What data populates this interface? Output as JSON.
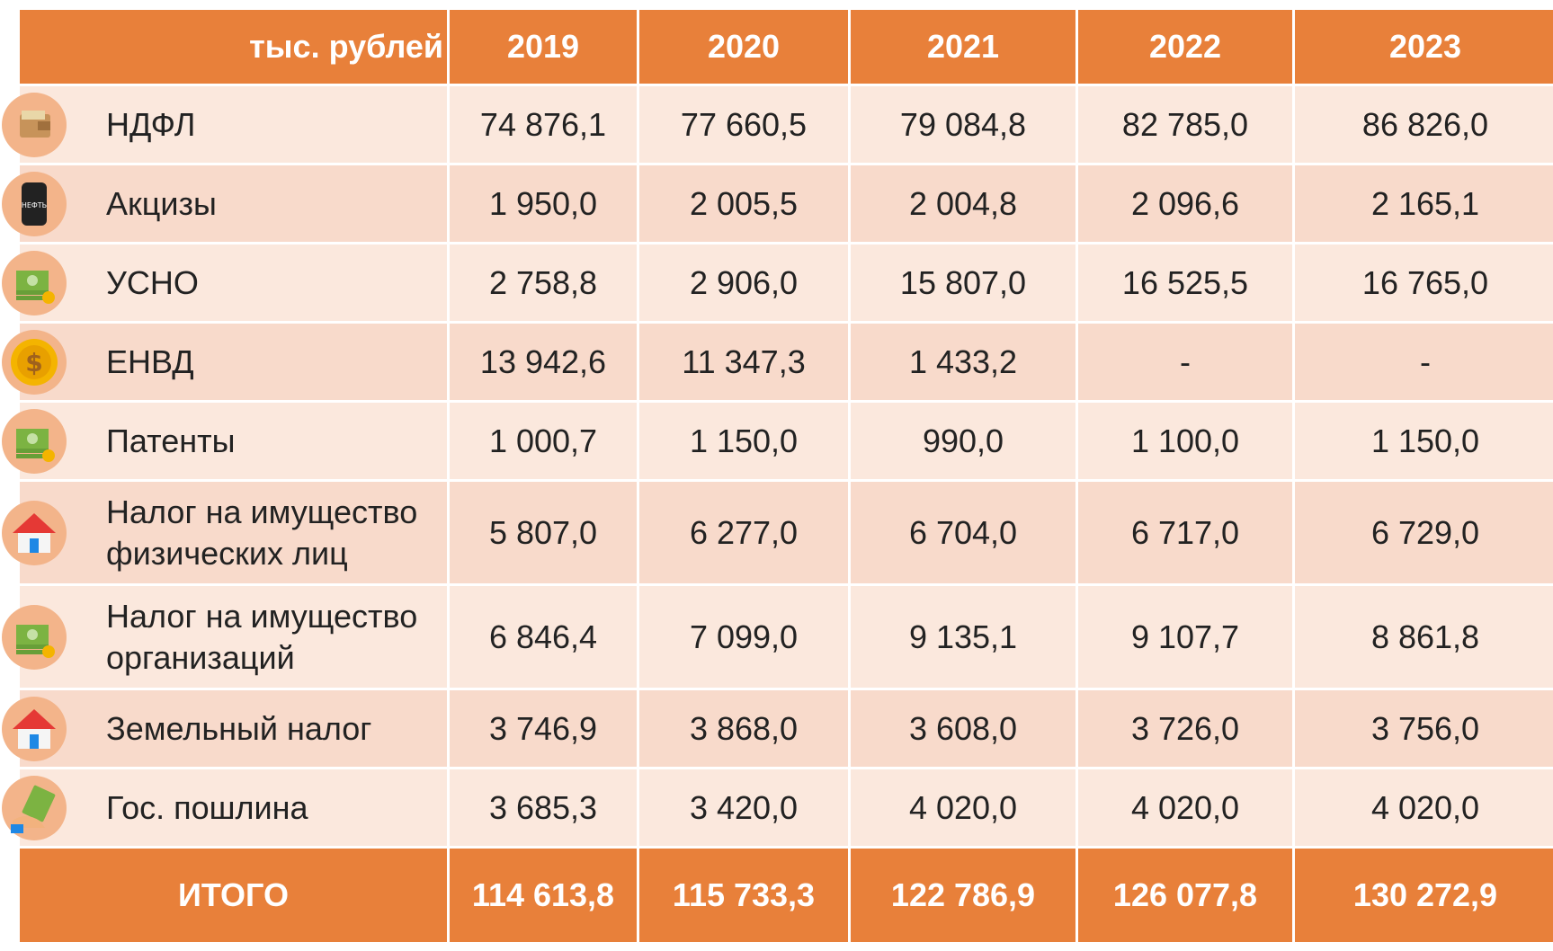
{
  "header": {
    "unit": "тыс. рублей",
    "years": [
      "2019",
      "2020",
      "2021",
      "2022",
      "2023"
    ]
  },
  "rows": [
    {
      "name": "НДФЛ",
      "values": [
        "74 876,1",
        "77 660,5",
        "79 084,8",
        "82 785,0",
        "86 826,0"
      ]
    },
    {
      "name": "Акцизы",
      "values": [
        "1 950,0",
        "2 005,5",
        "2 004,8",
        "2 096,6",
        "2 165,1"
      ]
    },
    {
      "name": "УСНО",
      "values": [
        "2 758,8",
        "2 906,0",
        "15 807,0",
        "16 525,5",
        "16 765,0"
      ]
    },
    {
      "name": "ЕНВД",
      "values": [
        "13 942,6",
        "11 347,3",
        "1 433,2",
        "-",
        "-"
      ]
    },
    {
      "name": "Патенты",
      "values": [
        "1 000,7",
        "1 150,0",
        "990,0",
        "1 100,0",
        "1 150,0"
      ]
    },
    {
      "name": "Налог на имущество физических лиц",
      "values": [
        "5 807,0",
        "6 277,0",
        "6 704,0",
        "6 717,0",
        "6 729,0"
      ]
    },
    {
      "name": "Налог на имущество организаций",
      "values": [
        "6 846,4",
        "7 099,0",
        "9 135,1",
        "9 107,7",
        "8 861,8"
      ]
    },
    {
      "name": "Земельный налог",
      "values": [
        "3 746,9",
        "3 868,0",
        "3 608,0",
        "3 726,0",
        "3 756,0"
      ]
    },
    {
      "name": "Гос. пошлина",
      "values": [
        "3 685,3",
        "3 420,0",
        "4 020,0",
        "4 020,0",
        "4 020,0"
      ]
    }
  ],
  "total": {
    "label": "ИТОГО",
    "values": [
      "114 613,8",
      "115 733,3",
      "122 786,9",
      "126 077,8",
      "130 272,9"
    ]
  }
}
